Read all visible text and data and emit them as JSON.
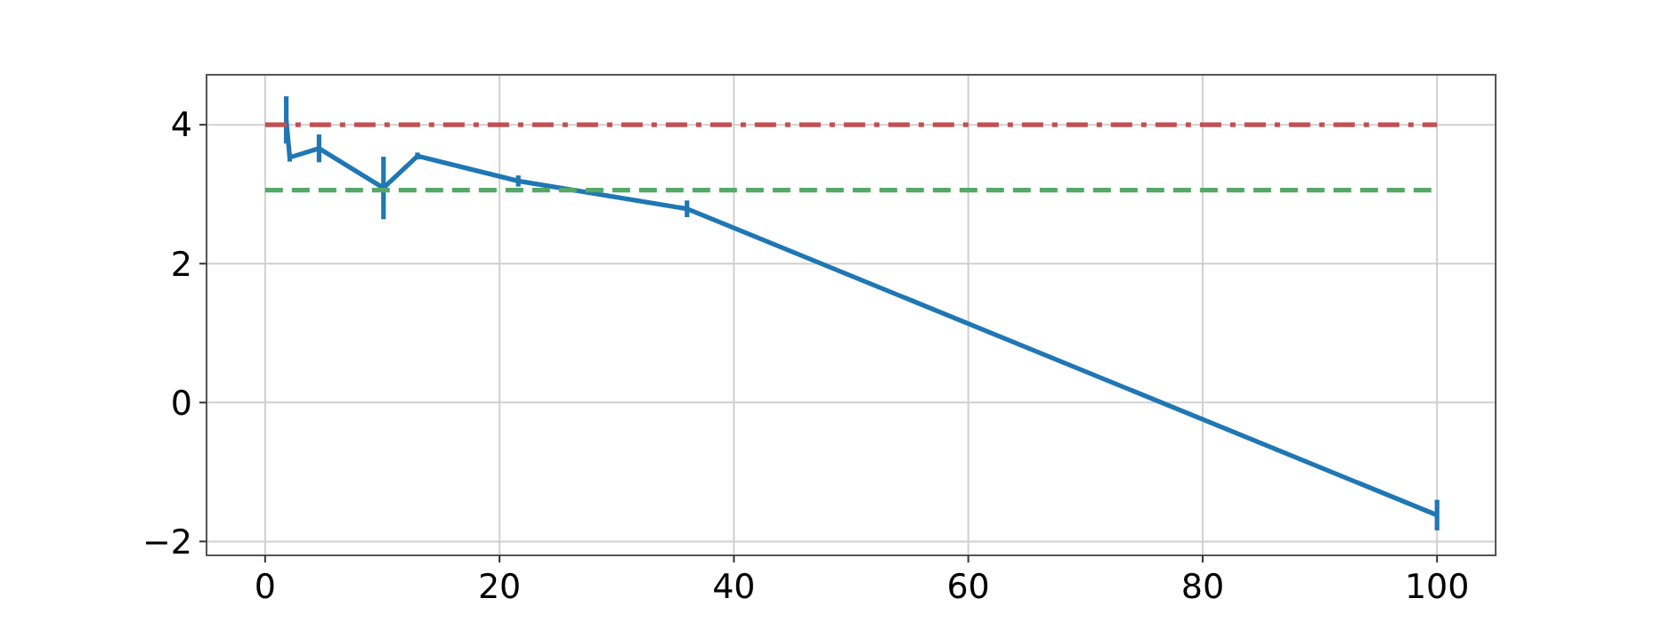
{
  "chart_data": {
    "type": "line",
    "xlim": [
      -5,
      105
    ],
    "ylim": [
      -2.2,
      4.72
    ],
    "xticks": [
      0,
      20,
      40,
      60,
      80,
      100
    ],
    "yticks": [
      -2,
      0,
      2,
      4
    ],
    "grid": true,
    "series": [
      {
        "color": "#1f77b4",
        "x": [
          1.8,
          2.1,
          4.6,
          10.1,
          13,
          21.6,
          36,
          100
        ],
        "values": [
          4.07,
          3.53,
          3.66,
          3.09,
          3.55,
          3.19,
          2.79,
          -1.62
        ],
        "errors": [
          0.34,
          0.06,
          0.2,
          0.45,
          0.05,
          0.08,
          0.12,
          0.22
        ]
      },
      {
        "color": "#c44e52",
        "line_style": "dashdot",
        "x": [
          0,
          100
        ],
        "values": [
          4.0,
          4.0
        ]
      },
      {
        "color": "#55a868",
        "line_style": "dashed",
        "x": [
          0,
          100
        ],
        "values": [
          3.06,
          3.06
        ]
      }
    ]
  }
}
